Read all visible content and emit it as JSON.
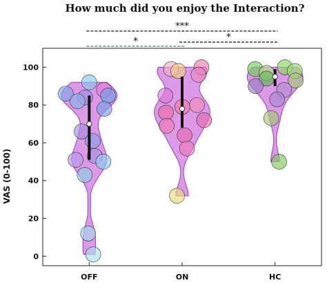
{
  "chart_data": {
    "type": "violin",
    "title": "How much did you enjoy the Interaction?",
    "ylabel": "VAS (0-100)",
    "xlabel": "",
    "ylim": [
      -5,
      110
    ],
    "yticks": [
      0,
      20,
      40,
      60,
      80,
      100
    ],
    "yticklabels": [
      "0",
      "20",
      "40",
      "60",
      "80",
      "100"
    ],
    "grid": false,
    "violin_color": "#d88ee6",
    "violin_edge": "#9a3fb3",
    "groups": [
      {
        "name": "OFF",
        "median": 70,
        "q1": 51,
        "q3": 85,
        "points": [
          {
            "y": 92,
            "color": "#88c8ee"
          },
          {
            "y": 88,
            "color": "#e87adb"
          },
          {
            "y": 86,
            "color": "#7fa8e8"
          },
          {
            "y": 85,
            "color": "#6f9fe6"
          },
          {
            "y": 84,
            "color": "#9a8ee8"
          },
          {
            "y": 82,
            "color": "#88b3e8"
          },
          {
            "y": 78,
            "color": "#7aa0e8"
          },
          {
            "y": 66,
            "color": "#a58ce8"
          },
          {
            "y": 61,
            "color": "#8a9ee8"
          },
          {
            "y": 53,
            "color": "#a78fe8"
          },
          {
            "y": 51,
            "color": "#b49ae8"
          },
          {
            "y": 50,
            "color": "#8ed0ec"
          },
          {
            "y": 43,
            "color": "#8ccfe8"
          },
          {
            "y": 12,
            "color": "#9ed8ee"
          },
          {
            "y": 1,
            "color": "#a8e0f0"
          }
        ]
      },
      {
        "name": "ON",
        "median": 78,
        "q1": 68,
        "q3": 95,
        "points": [
          {
            "y": 100,
            "color": "#ef7ab5"
          },
          {
            "y": 99,
            "color": "#f2b0c4"
          },
          {
            "y": 98,
            "color": "#f0d080"
          },
          {
            "y": 96,
            "color": "#e88ac0"
          },
          {
            "y": 85,
            "color": "#d87ad8"
          },
          {
            "y": 80,
            "color": "#f08ab8"
          },
          {
            "y": 79,
            "color": "#f07aa8"
          },
          {
            "y": 76,
            "color": "#ee6aa8"
          },
          {
            "y": 72,
            "color": "#e66ab0"
          },
          {
            "y": 69,
            "color": "#f07ab8"
          },
          {
            "y": 64,
            "color": "#e86ab0"
          },
          {
            "y": 57,
            "color": "#ee7ac0"
          },
          {
            "y": 32,
            "color": "#eadc7a"
          }
        ]
      },
      {
        "name": "HC",
        "median": 95,
        "q1": 90,
        "q3": 99,
        "points": [
          {
            "y": 100,
            "color": "#88d860"
          },
          {
            "y": 99,
            "color": "#6ecf5a"
          },
          {
            "y": 98,
            "color": "#98e070"
          },
          {
            "y": 97,
            "color": "#b8e088"
          },
          {
            "y": 94,
            "color": "#62b858"
          },
          {
            "y": 93,
            "color": "#a8c878"
          },
          {
            "y": 90,
            "color": "#9a7ec0"
          },
          {
            "y": 88,
            "color": "#b48ed0"
          },
          {
            "y": 83,
            "color": "#a888d0"
          },
          {
            "y": 73,
            "color": "#a6c870"
          },
          {
            "y": 50,
            "color": "#80c860"
          }
        ]
      }
    ],
    "significance": [
      {
        "from": "OFF",
        "to": "HC",
        "label": "***",
        "style": "dashed",
        "color": "#111111"
      },
      {
        "from": "ON",
        "to": "HC",
        "label": "*",
        "style": "dashed",
        "color": "#111111"
      },
      {
        "from": "OFF",
        "to": "ON",
        "label": "*",
        "style": "dashed",
        "color": "#4a7a5e"
      }
    ]
  }
}
